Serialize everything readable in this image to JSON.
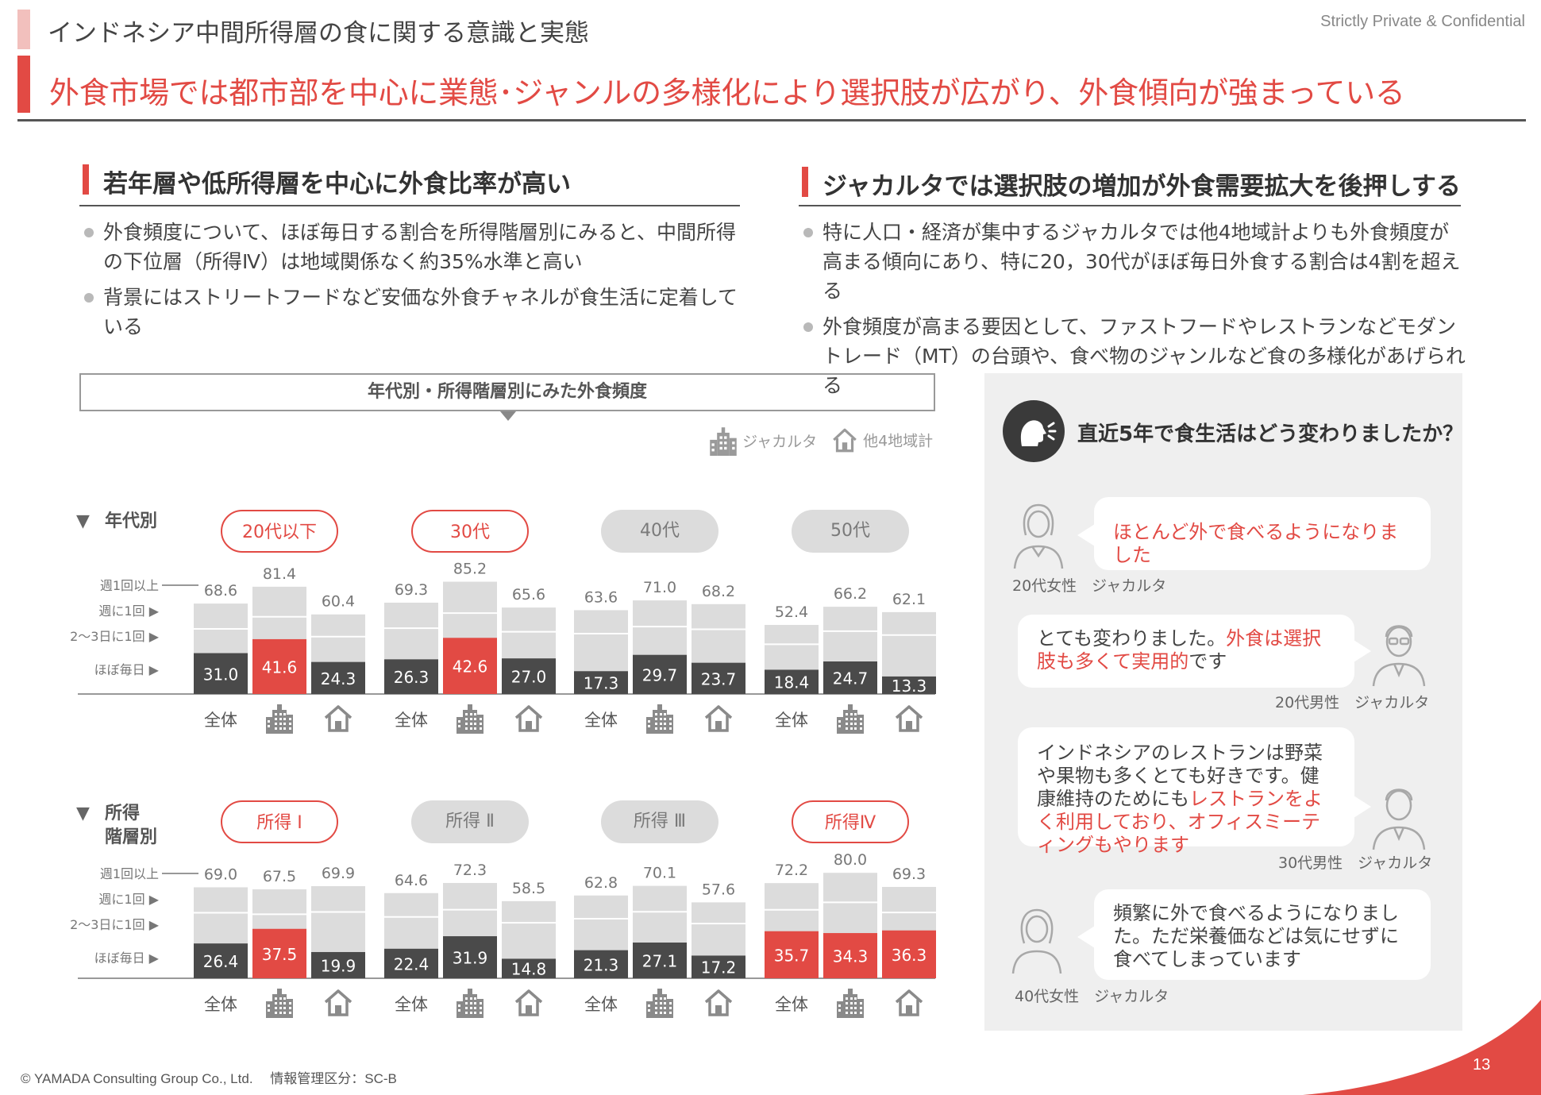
{
  "header": {
    "title": "インドネシア中間所得層の食に関する意識と実態",
    "confidential": "Strictly Private & Confidential",
    "headline": "外食市場では都市部を中心に業態･ジャンルの多様化により選択肢が広がり、外食傾向が強まっている"
  },
  "left_section": {
    "heading": "若年層や低所得層を中心に外食比率が高い",
    "bullets": [
      "外食頻度について、ほぼ毎日する割合を所得階層別にみると、中間所得の下位層（所得Ⅳ）は地域関係なく約35%水準と高い",
      "背景にはストリートフードなど安価な外食チャネルが食生活に定着している"
    ]
  },
  "right_section": {
    "heading": "ジャカルタでは選択肢の増加が外食需要拡大を後押しする",
    "bullets": [
      "特に人口・経済が集中するジャカルタでは他4地域計よりも外食頻度が高まる傾向にあり、特に20，30代がほぼ毎日外食する割合は4割を超える",
      "外食頻度が高まる要因として、ファストフードやレストランなどモダントレード（MT）の台頭や、食べ物のジャンルなど食の多様化があげられる"
    ]
  },
  "chart_panel": {
    "title": "年代別・所得階層別にみた外食頻度",
    "legend": {
      "jakarta": "ジャカルタ",
      "others": "他4地域計"
    }
  },
  "chart_data": [
    {
      "type": "bar",
      "row_label": "年代別",
      "y_levels": [
        "週1回以上",
        "週に1回",
        "2～3日に1回",
        "ほぼ毎日"
      ],
      "bar_labels": [
        "全体",
        "ジャカルタ",
        "他4地域計"
      ],
      "groups": [
        {
          "name": "20代以下",
          "highlight": true,
          "totals": [
            68.6,
            81.4,
            60.4
          ],
          "daily": [
            31.0,
            41.6,
            24.3
          ],
          "red_bars": [
            1
          ]
        },
        {
          "name": "30代",
          "highlight": true,
          "totals": [
            69.3,
            85.2,
            65.6
          ],
          "daily": [
            26.3,
            42.6,
            27.0
          ],
          "red_bars": [
            1
          ]
        },
        {
          "name": "40代",
          "highlight": false,
          "totals": [
            63.6,
            71.0,
            68.2
          ],
          "daily": [
            17.3,
            29.7,
            23.7
          ],
          "red_bars": []
        },
        {
          "name": "50代",
          "highlight": false,
          "totals": [
            52.4,
            66.2,
            62.1
          ],
          "daily": [
            18.4,
            24.7,
            13.3
          ],
          "red_bars": []
        }
      ]
    },
    {
      "type": "bar",
      "row_label": "所得\n階層別",
      "y_levels": [
        "週1回以上",
        "週に1回",
        "2～3日に1回",
        "ほぼ毎日"
      ],
      "bar_labels": [
        "全体",
        "ジャカルタ",
        "他4地域計"
      ],
      "groups": [
        {
          "name": "所得 Ⅰ",
          "highlight": true,
          "totals": [
            69.0,
            67.5,
            69.9
          ],
          "daily": [
            26.4,
            37.5,
            19.9
          ],
          "red_bars": [
            1
          ]
        },
        {
          "name": "所得 Ⅱ",
          "highlight": false,
          "totals": [
            64.6,
            72.3,
            58.5
          ],
          "daily": [
            22.4,
            31.9,
            14.8
          ],
          "red_bars": []
        },
        {
          "name": "所得 Ⅲ",
          "highlight": false,
          "totals": [
            62.8,
            70.1,
            57.6
          ],
          "daily": [
            21.3,
            27.1,
            17.2
          ],
          "red_bars": []
        },
        {
          "name": "所得Ⅳ",
          "highlight": true,
          "totals": [
            72.2,
            80.0,
            69.3
          ],
          "daily": [
            35.7,
            34.3,
            36.3
          ],
          "red_bars": [
            0,
            1,
            2
          ]
        }
      ]
    }
  ],
  "voices": {
    "question": "直近5年で食生活はどう変わりましたか？",
    "items": [
      {
        "parts": [
          {
            "t": "ほとんど外で食べるようになりました",
            "red": true
          }
        ],
        "speaker": "20代女性　ジャカルタ"
      },
      {
        "parts": [
          {
            "t": "とても変わりました。",
            "red": false
          },
          {
            "t": "外食は選択肢も多くて実用的",
            "red": true
          },
          {
            "t": "です",
            "red": false
          }
        ],
        "speaker": "20代男性　ジャカルタ"
      },
      {
        "parts": [
          {
            "t": "インドネシアのレストランは野菜や果物も多くとても好きです。健康維持のためにも",
            "red": false
          },
          {
            "t": "レストランをよく利用しており、オフィスミーティングもやります",
            "red": true
          }
        ],
        "speaker": "30代男性　ジャカルタ"
      },
      {
        "parts": [
          {
            "t": "頻繁に外で食べるようになりました。ただ栄養価などは気にせずに食べてしまっています",
            "red": false
          }
        ],
        "speaker": "40代女性　ジャカルタ"
      }
    ]
  },
  "footer": {
    "copyright": "© YAMADA Consulting Group Co., Ltd.　 情報管理区分：SC-B",
    "page": "13"
  },
  "colors": {
    "accent_red": "#e24a44",
    "dark_bar": "#4a4a4a",
    "light_bar": "#dcdcdc",
    "panel_bg": "#efefef"
  }
}
